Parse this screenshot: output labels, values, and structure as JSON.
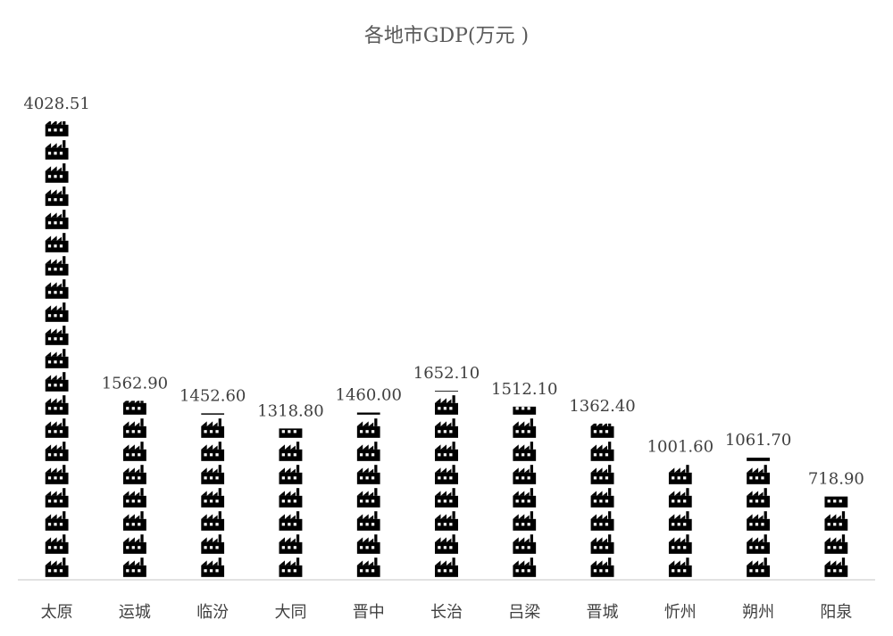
{
  "chart_data": {
    "type": "bar",
    "style": "pictograph",
    "icon": "factory-icon",
    "title": "各地市GDP(万元 )",
    "xlabel": "",
    "ylabel": "",
    "categories": [
      "太原",
      "运城",
      "临汾",
      "大同",
      "晋中",
      "长治",
      "吕梁",
      "晋城",
      "忻州",
      "朔州",
      "阳泉"
    ],
    "values": [
      4028.51,
      1562.9,
      1452.6,
      1318.8,
      1460.0,
      1652.1,
      1512.1,
      1362.4,
      1001.6,
      1061.7,
      718.9
    ],
    "value_labels": [
      "4028.51",
      "1562.90",
      "1452.60",
      "1318.80",
      "1460.00",
      "1652.10",
      "1512.10",
      "1362.40",
      "1001.60",
      "1061.70",
      "718.90"
    ],
    "ylim": [
      0,
      4028.51
    ],
    "grid": false,
    "legend": "none",
    "bar_color": "#000000",
    "axis_color": "#d9d9d9"
  }
}
